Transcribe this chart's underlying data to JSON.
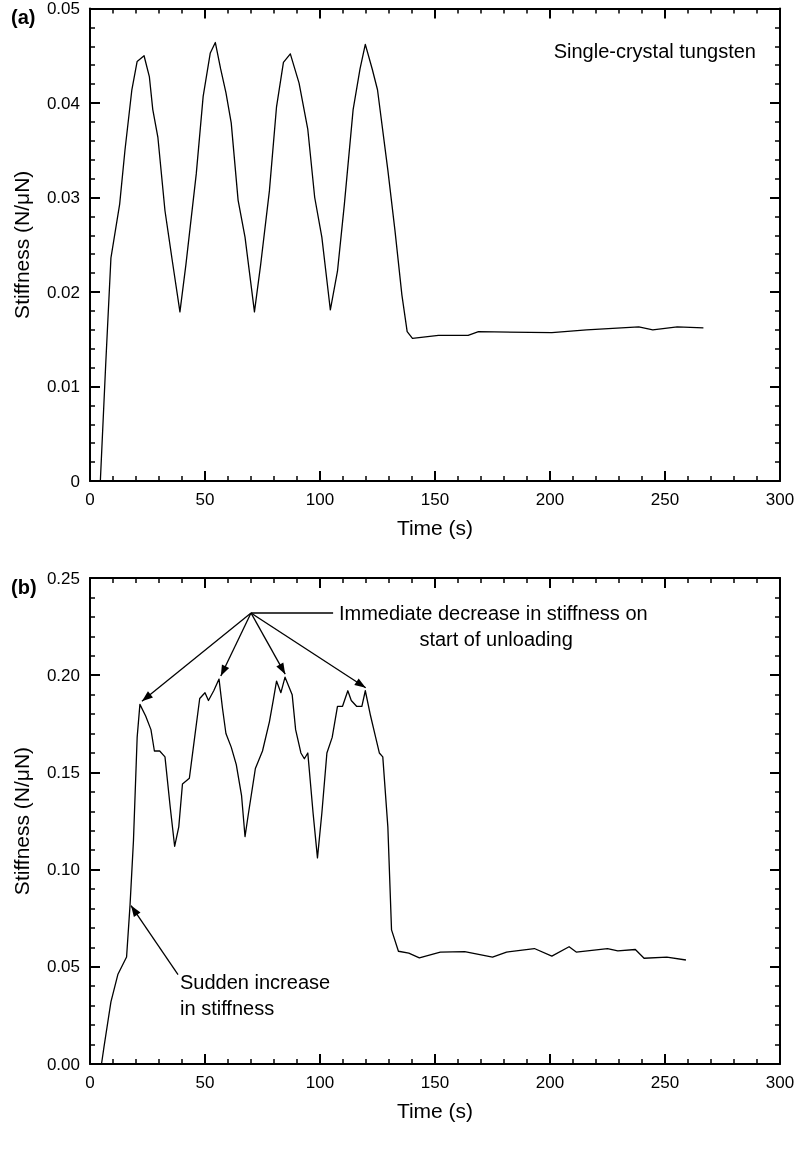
{
  "chart_data": [
    {
      "type": "line",
      "title": "(a)",
      "xlabel": "Time (s)",
      "ylabel": "Stiffness (N/μN)",
      "xlim": [
        0,
        300
      ],
      "xticks": [
        0,
        50,
        100,
        150,
        200,
        250,
        300
      ],
      "ylim": [
        0,
        0.05
      ],
      "yticks": [
        0,
        0.01,
        0.02,
        0.03,
        0.04,
        0.05
      ],
      "annotations": [
        "Single-crystal tungsten"
      ],
      "series": [
        {
          "color": "#000000",
          "x": [
            4.5,
            6.8,
            9.1,
            12.9,
            15.2,
            18.2,
            20.5,
            23.5,
            25.8,
            27.3,
            29.5,
            32.6,
            35.6,
            39.1,
            41.7,
            46.2,
            49.2,
            52.3,
            54.5,
            56.8,
            59.1,
            61.4,
            64.4,
            67.4,
            71.5,
            74.2,
            78.0,
            81.1,
            84.1,
            87.1,
            90.9,
            94.7,
            97.7,
            100.8,
            104.5,
            107.6,
            110.6,
            114.4,
            117.4,
            119.7,
            122.7,
            125.0,
            129.5,
            132.6,
            135.6,
            137.9,
            140.2,
            151.5,
            164.4,
            168.9,
            200.8,
            215.9,
            238.6,
            244.7,
            255.3,
            266.7
          ],
          "values": [
            0,
            0.0122,
            0.0236,
            0.0293,
            0.035,
            0.0414,
            0.0444,
            0.045,
            0.0428,
            0.0393,
            0.0364,
            0.0286,
            0.0236,
            0.0179,
            0.0229,
            0.0325,
            0.0407,
            0.0453,
            0.0464,
            0.0436,
            0.0411,
            0.0379,
            0.0297,
            0.0258,
            0.0179,
            0.0229,
            0.0307,
            0.0396,
            0.0443,
            0.0452,
            0.0421,
            0.0372,
            0.03,
            0.0258,
            0.0181,
            0.0222,
            0.0293,
            0.0393,
            0.0436,
            0.0462,
            0.0436,
            0.0414,
            0.0329,
            0.0265,
            0.0197,
            0.0158,
            0.0151,
            0.0154,
            0.0154,
            0.0158,
            0.0157,
            0.016,
            0.0163,
            0.016,
            0.0163,
            0.0162
          ]
        }
      ]
    },
    {
      "type": "line",
      "title": "(b)",
      "xlabel": "Time (s)",
      "ylabel": "Stiffness (N/μN)",
      "xlim": [
        0,
        300
      ],
      "xticks": [
        0,
        50,
        100,
        150,
        200,
        250,
        300
      ],
      "ylim": [
        0,
        0.25
      ],
      "yticks": [
        {
          "value": 0,
          "label": "0.00"
        },
        0.05,
        {
          "value": 0.1,
          "label": "0.10"
        },
        0.15,
        {
          "value": 0.2,
          "label": "0.20"
        },
        0.25
      ],
      "annotations": [
        "Immediate decrease in stiffness on start of unloading",
        {
          "text": "Sudden increase in stiffness",
          "x": 17.4,
          "y": 0.082
        }
      ],
      "series": [
        {
          "color": "#000000",
          "x": [
            5,
            6.1,
            9.1,
            12.1,
            15.9,
            17.4,
            18.9,
            20.5,
            21.7,
            24.2,
            26.5,
            28.0,
            30.3,
            32.6,
            34.8,
            36.8,
            38.6,
            40.2,
            43.2,
            45.5,
            47.7,
            50.0,
            51.5,
            53.8,
            56.1,
            57.6,
            59.1,
            61.4,
            63.6,
            65.9,
            67.4,
            68.9,
            71.9,
            75.0,
            78.0,
            79.8,
            81.1,
            83.0,
            84.8,
            87.9,
            89.4,
            91.7,
            93.2,
            94.7,
            97.0,
            98.9,
            100.8,
            103.0,
            105.3,
            107.6,
            109.8,
            112.1,
            113.6,
            115.9,
            118.2,
            119.7,
            122.0,
            124.2,
            125.8,
            127.3,
            129.5,
            131.1,
            134.1,
            138.6,
            143.2,
            152.3,
            162.9,
            175.0,
            181.1,
            193.2,
            200.8,
            208.3,
            211.4,
            225.0,
            229.5,
            237.1,
            240.9,
            250.8,
            259.1
          ],
          "values": [
            0,
            0.0089,
            0.032,
            0.046,
            0.055,
            0.0816,
            0.115,
            0.168,
            0.185,
            0.179,
            0.172,
            0.161,
            0.161,
            0.158,
            0.133,
            0.112,
            0.122,
            0.144,
            0.147,
            0.168,
            0.188,
            0.191,
            0.187,
            0.192,
            0.198,
            0.183,
            0.17,
            0.163,
            0.154,
            0.138,
            0.117,
            0.129,
            0.152,
            0.161,
            0.176,
            0.188,
            0.197,
            0.191,
            0.199,
            0.19,
            0.172,
            0.16,
            0.157,
            0.16,
            0.129,
            0.106,
            0.129,
            0.16,
            0.168,
            0.184,
            0.184,
            0.192,
            0.187,
            0.184,
            0.184,
            0.192,
            0.179,
            0.168,
            0.16,
            0.158,
            0.122,
            0.069,
            0.058,
            0.057,
            0.0546,
            0.0576,
            0.0578,
            0.055,
            0.0576,
            0.0594,
            0.0555,
            0.0603,
            0.0576,
            0.0594,
            0.0582,
            0.0589,
            0.0544,
            0.055,
            0.0535
          ]
        }
      ]
    }
  ]
}
